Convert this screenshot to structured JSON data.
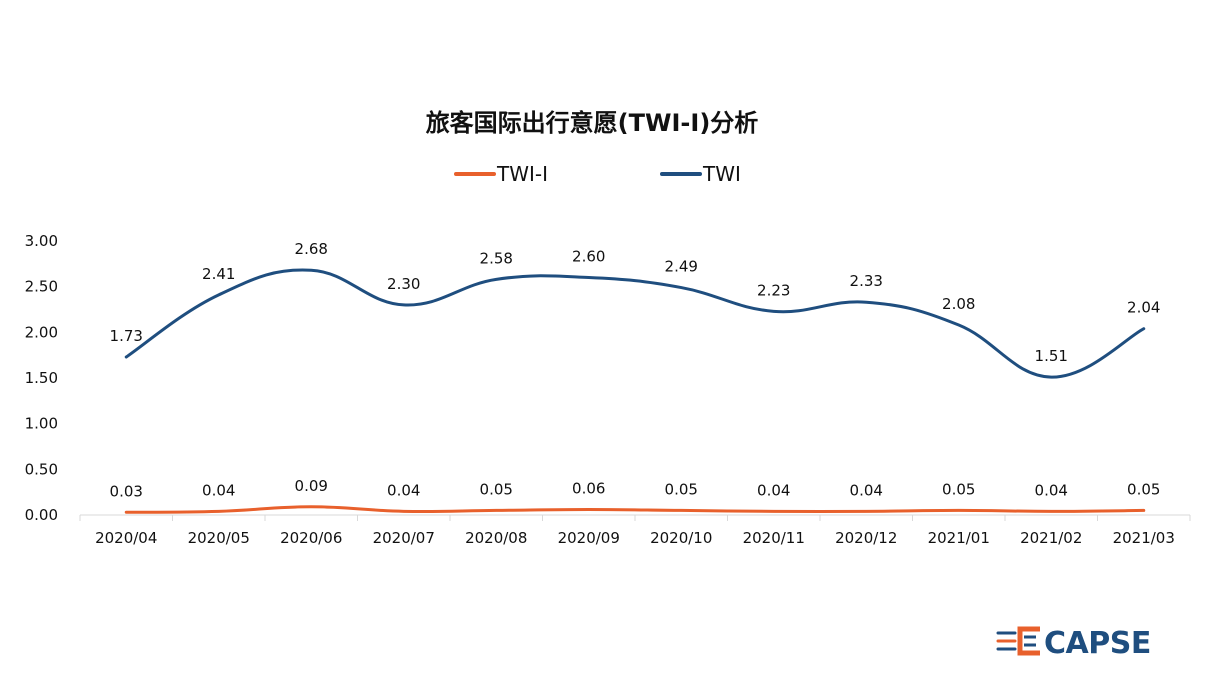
{
  "chart_data": {
    "type": "line",
    "title": "旅客国际出行意愿(TWI-I)分析",
    "categories": [
      "2020/04",
      "2020/05",
      "2020/06",
      "2020/07",
      "2020/08",
      "2020/09",
      "2020/10",
      "2020/11",
      "2020/12",
      "2021/01",
      "2021/02",
      "2021/03"
    ],
    "series": [
      {
        "name": "TWI-I",
        "color": "#e8602c",
        "values": [
          0.03,
          0.04,
          0.09,
          0.04,
          0.05,
          0.06,
          0.05,
          0.04,
          0.04,
          0.05,
          0.04,
          0.05
        ]
      },
      {
        "name": "TWI",
        "color": "#1f4e7f",
        "values": [
          1.73,
          2.41,
          2.68,
          2.3,
          2.58,
          2.6,
          2.49,
          2.23,
          2.33,
          2.08,
          1.51,
          2.04
        ]
      }
    ],
    "y_ticks": [
      "0.00",
      "0.50",
      "1.00",
      "1.50",
      "2.00",
      "2.50",
      "3.00"
    ],
    "ylim": [
      0,
      3
    ],
    "legend_position": "top-center",
    "grid": false,
    "smooth": true
  },
  "brand": {
    "name": "CAPSE",
    "colors": {
      "red": "#e8602c",
      "navy": "#1f4e7f"
    }
  }
}
